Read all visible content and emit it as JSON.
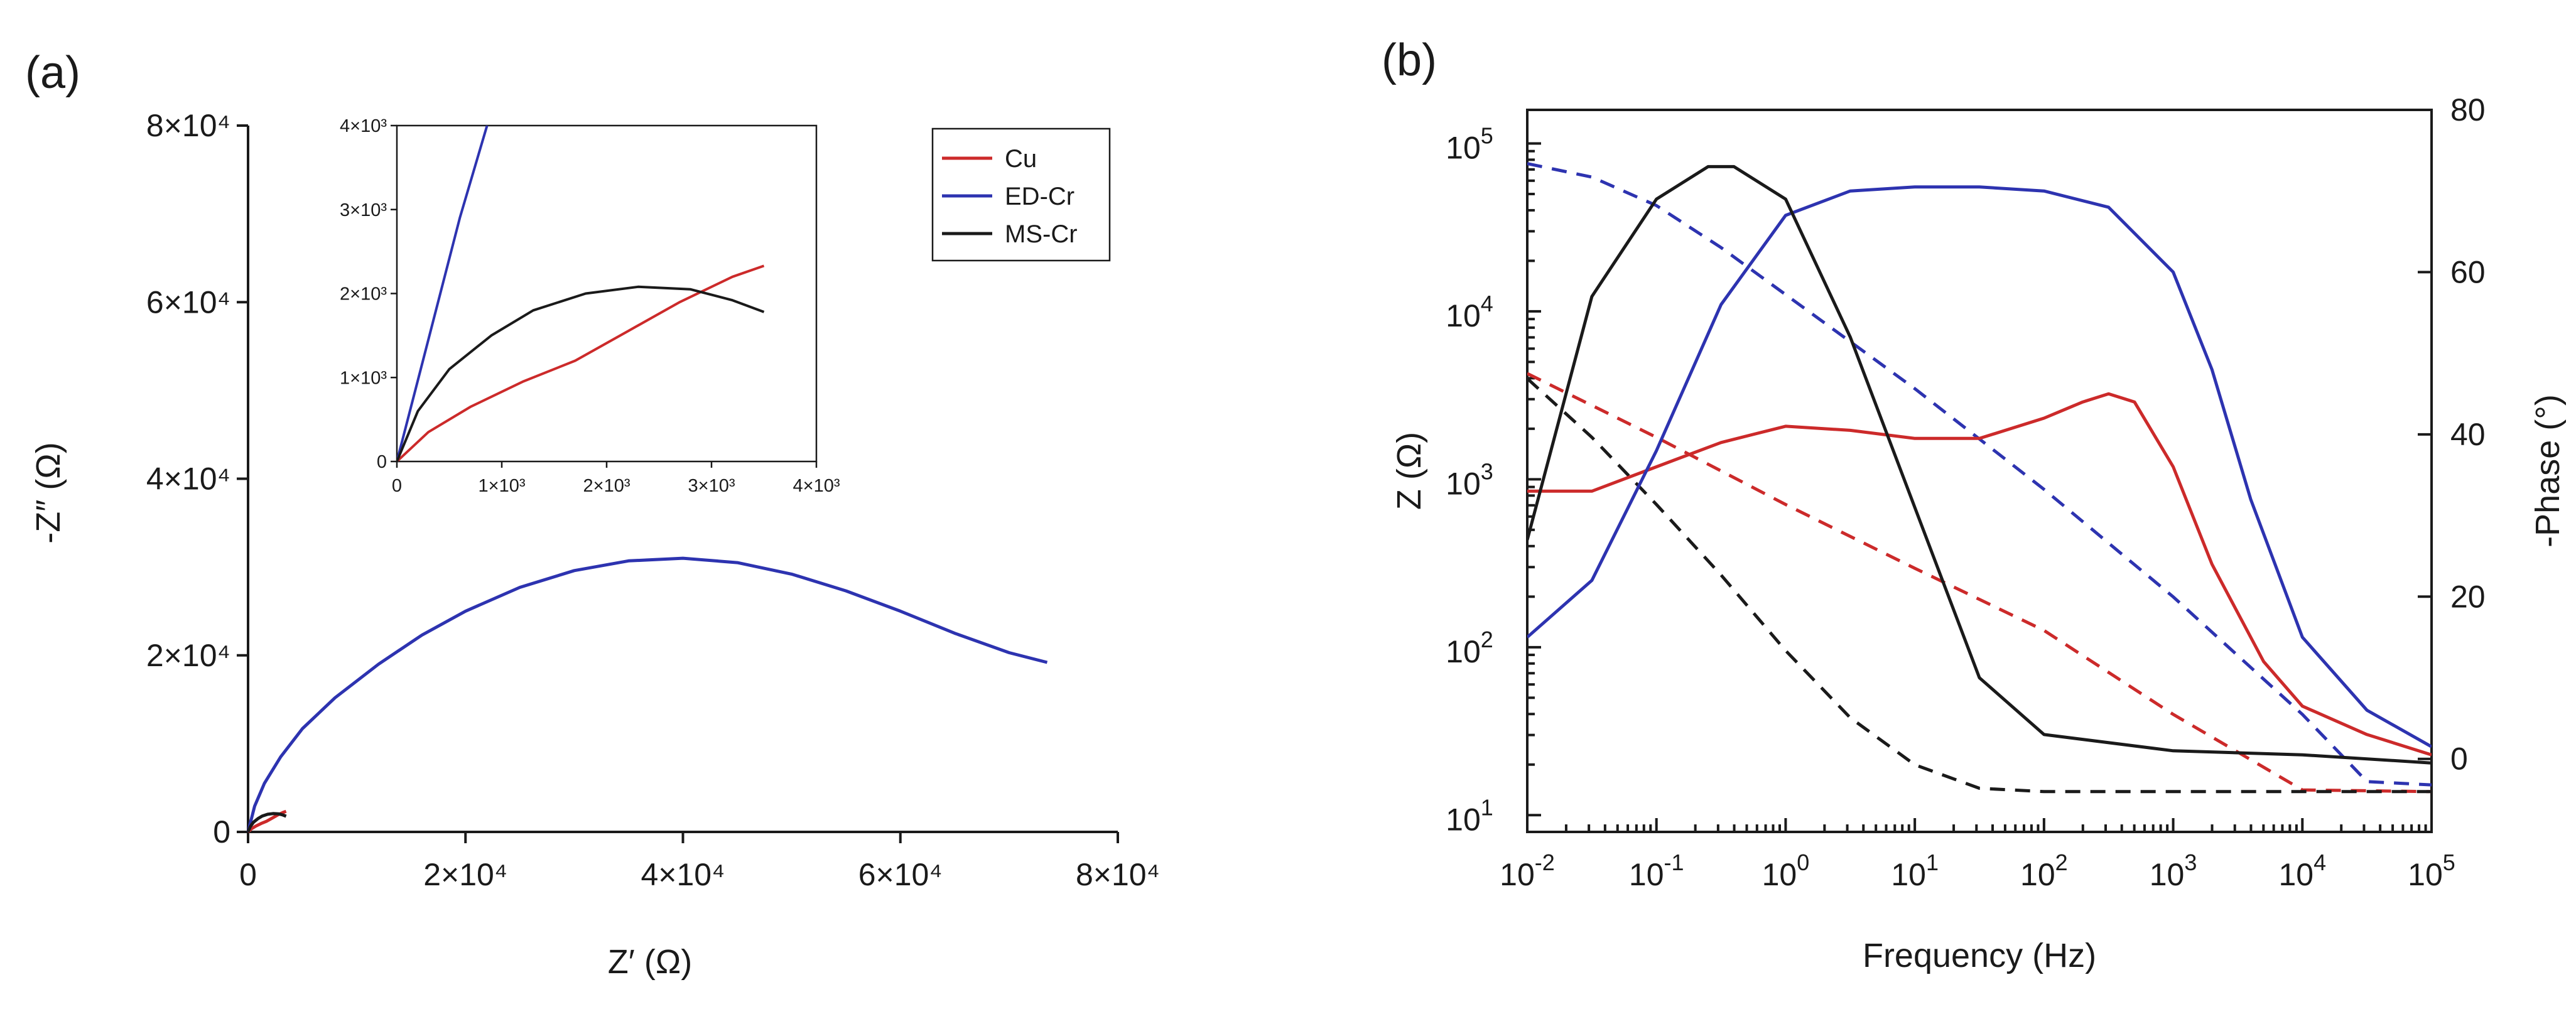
{
  "chart_data": [
    {
      "id": "a",
      "panel_label": "(a)",
      "type": "line",
      "xlabel": "Z′ (Ω)",
      "ylabel": "-Z″ (Ω)",
      "xlim": [
        0,
        80000
      ],
      "ylim": [
        0,
        80000
      ],
      "xticks": [
        {
          "v": 0,
          "label": "0"
        },
        {
          "v": 20000,
          "label": "2×10⁴"
        },
        {
          "v": 40000,
          "label": "4×10⁴"
        },
        {
          "v": 60000,
          "label": "6×10⁴"
        },
        {
          "v": 80000,
          "label": "8×10⁴"
        }
      ],
      "yticks": [
        {
          "v": 0,
          "label": "0"
        },
        {
          "v": 20000,
          "label": "2×10⁴"
        },
        {
          "v": 40000,
          "label": "4×10⁴"
        },
        {
          "v": 60000,
          "label": "6×10⁴"
        },
        {
          "v": 80000,
          "label": "8×10⁴"
        }
      ],
      "legend": {
        "position": "top-right",
        "entries": [
          "Cu",
          "ED-Cr",
          "MS-Cr"
        ]
      },
      "series": [
        {
          "name": "Cu",
          "color": "#cc2a2a",
          "x": [
            0,
            300,
            700,
            1200,
            1700,
            2200,
            2700,
            3200,
            3500
          ],
          "y": [
            0,
            350,
            650,
            950,
            1200,
            1550,
            1900,
            2200,
            2330
          ]
        },
        {
          "name": "ED-Cr",
          "color": "#2d33b0",
          "x": [
            0,
            600,
            1500,
            3000,
            5000,
            8000,
            12000,
            16000,
            20000,
            25000,
            30000,
            35000,
            40000,
            45000,
            50000,
            55000,
            60000,
            65000,
            70000,
            73500
          ],
          "y": [
            0,
            2900,
            5500,
            8500,
            11700,
            15200,
            19000,
            22300,
            25000,
            27700,
            29600,
            30700,
            31000,
            30500,
            29200,
            27300,
            25000,
            22500,
            20300,
            19200
          ]
        },
        {
          "name": "MS-Cr",
          "color": "#1a1a1a",
          "x": [
            0,
            200,
            500,
            900,
            1300,
            1800,
            2300,
            2800,
            3200,
            3500
          ],
          "y": [
            0,
            600,
            1100,
            1500,
            1800,
            2000,
            2080,
            2050,
            1920,
            1780
          ]
        }
      ],
      "inset": {
        "xlim": [
          0,
          4000
        ],
        "ylim": [
          0,
          4000
        ],
        "xticks": [
          {
            "v": 0,
            "label": "0"
          },
          {
            "v": 1000,
            "label": "1×10³"
          },
          {
            "v": 2000,
            "label": "2×10³"
          },
          {
            "v": 3000,
            "label": "3×10³"
          },
          {
            "v": 4000,
            "label": "4×10³"
          }
        ],
        "yticks": [
          {
            "v": 0,
            "label": "0"
          },
          {
            "v": 1000,
            "label": "1×10³"
          },
          {
            "v": 2000,
            "label": "2×10³"
          },
          {
            "v": 3000,
            "label": "3×10³"
          },
          {
            "v": 4000,
            "label": "4×10³"
          }
        ],
        "series": [
          {
            "name": "Cu",
            "color": "#cc2a2a",
            "x": [
              0,
              300,
              700,
              1200,
              1700,
              2200,
              2700,
              3200,
              3500
            ],
            "y": [
              0,
              350,
              650,
              950,
              1200,
              1550,
              1900,
              2200,
              2330
            ]
          },
          {
            "name": "ED-Cr",
            "color": "#2d33b0",
            "x": [
              0,
              300,
              600,
              860
            ],
            "y": [
              0,
              1450,
              2900,
              4000
            ]
          },
          {
            "name": "MS-Cr",
            "color": "#1a1a1a",
            "x": [
              0,
              200,
              500,
              900,
              1300,
              1800,
              2300,
              2800,
              3200,
              3500
            ],
            "y": [
              0,
              600,
              1100,
              1500,
              1800,
              2000,
              2080,
              2050,
              1920,
              1780
            ]
          }
        ]
      }
    },
    {
      "id": "b",
      "panel_label": "(b)",
      "type": "line",
      "xlabel": "Frequency (Hz)",
      "ylabel": "Z (Ω)",
      "y2label": "-Phase (°)",
      "xscale": "log",
      "yscale": "log",
      "xlim": [
        -2,
        5
      ],
      "ylim": [
        0.9,
        5.2
      ],
      "y2lim": [
        -9,
        80
      ],
      "xticks": [
        {
          "v": -2,
          "base": "10",
          "exp": "-2"
        },
        {
          "v": -1,
          "base": "10",
          "exp": "-1"
        },
        {
          "v": 0,
          "base": "10",
          "exp": "0"
        },
        {
          "v": 1,
          "base": "10",
          "exp": "1"
        },
        {
          "v": 2,
          "base": "10",
          "exp": "2"
        },
        {
          "v": 3,
          "base": "10",
          "exp": "3"
        },
        {
          "v": 4,
          "base": "10",
          "exp": "4"
        },
        {
          "v": 5,
          "base": "10",
          "exp": "5"
        }
      ],
      "yticks": [
        {
          "v": 1,
          "base": "10",
          "exp": "1"
        },
        {
          "v": 2,
          "base": "10",
          "exp": "2"
        },
        {
          "v": 3,
          "base": "10",
          "exp": "3"
        },
        {
          "v": 4,
          "base": "10",
          "exp": "4"
        },
        {
          "v": 5,
          "base": "10",
          "exp": "5"
        }
      ],
      "y2ticks": [
        {
          "v": 0,
          "label": "0"
        },
        {
          "v": 20,
          "label": "20"
        },
        {
          "v": 40,
          "label": "40"
        },
        {
          "v": 60,
          "label": "60"
        },
        {
          "v": 80,
          "label": "80"
        }
      ],
      "impedance_series": [
        {
          "name": "Cu |Z|",
          "color": "#cc2a2a",
          "log_f": [
            -2,
            -1,
            0,
            1,
            2,
            3,
            4,
            5
          ],
          "log_z": [
            3.63,
            3.25,
            2.85,
            2.47,
            2.1,
            1.6,
            1.15,
            1.14
          ]
        },
        {
          "name": "ED-Cr |Z|",
          "color": "#2d33b0",
          "log_f": [
            -2,
            -1.5,
            -1,
            -0.5,
            0,
            0.5,
            1,
            1.5,
            2,
            2.5,
            3,
            3.5,
            4,
            4.5,
            5
          ],
          "log_z": [
            4.88,
            4.8,
            4.63,
            4.38,
            4.1,
            3.82,
            3.54,
            3.24,
            2.94,
            2.62,
            2.3,
            1.95,
            1.6,
            1.2,
            1.18
          ]
        },
        {
          "name": "MS-Cr |Z|",
          "color": "#1a1a1a",
          "log_f": [
            -2,
            -1.5,
            -1,
            -0.5,
            0,
            0.5,
            1,
            1.5,
            2,
            3,
            4,
            5
          ],
          "log_z": [
            3.6,
            3.25,
            2.85,
            2.43,
            1.98,
            1.58,
            1.3,
            1.16,
            1.14,
            1.14,
            1.14,
            1.14
          ]
        }
      ],
      "phase_series": [
        {
          "name": "Cu phase",
          "color": "#cc2a2a",
          "log_f": [
            -2,
            -1.5,
            -1,
            -0.5,
            0,
            0.5,
            1,
            1.5,
            2,
            2.3,
            2.5,
            2.7,
            3,
            3.3,
            3.7,
            4,
            4.5,
            5
          ],
          "phase": [
            33,
            33,
            36,
            39,
            41,
            40.5,
            39.5,
            39.5,
            42,
            44,
            45,
            44,
            36,
            24,
            12,
            6.5,
            3,
            0.5
          ]
        },
        {
          "name": "ED-Cr phase",
          "color": "#2d33b0",
          "log_f": [
            -2,
            -1.5,
            -1,
            -0.5,
            0,
            0.5,
            1,
            1.5,
            2,
            2.5,
            3,
            3.3,
            3.6,
            4,
            4.5,
            5
          ],
          "phase": [
            15,
            22,
            38,
            56,
            67,
            70,
            70.5,
            70.5,
            70,
            68,
            60,
            48,
            32,
            15,
            6,
            1.5
          ]
        },
        {
          "name": "MS-Cr phase",
          "color": "#1a1a1a",
          "log_f": [
            -2,
            -1.5,
            -1,
            -0.6,
            -0.4,
            0,
            0.5,
            1,
            1.5,
            2,
            3,
            4,
            5
          ],
          "phase": [
            27,
            57,
            69,
            73,
            73,
            69,
            52,
            31,
            10,
            3,
            1,
            0.5,
            -0.5
          ]
        }
      ]
    }
  ]
}
